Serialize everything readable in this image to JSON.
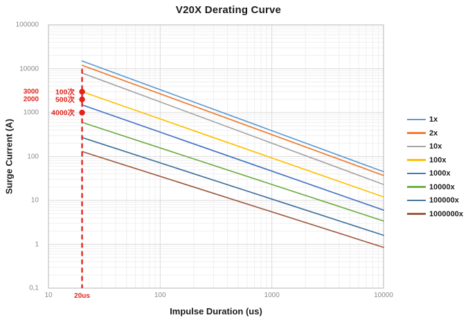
{
  "title": "V20X Derating Curve",
  "accent_red": "#E2231A",
  "chart_data": {
    "type": "line",
    "title": "V20X Derating Curve",
    "xlabel": "Impulse Duration (us)",
    "ylabel": "Surge Current (A)",
    "x_scale": "log",
    "y_scale": "log",
    "x_range": [
      10,
      10000
    ],
    "y_range": [
      0.1,
      100000
    ],
    "grid": true,
    "legend_position": "right",
    "x_ticks": [
      {
        "v": 10,
        "label": "10"
      },
      {
        "v": 100,
        "label": "100"
      },
      {
        "v": 1000,
        "label": "1000"
      },
      {
        "v": 10000,
        "label": "10000"
      }
    ],
    "y_ticks": [
      {
        "v": 100000,
        "label": "100000"
      },
      {
        "v": 10000,
        "label": "10000"
      },
      {
        "v": 1000,
        "label": "1000"
      },
      {
        "v": 100,
        "label": "100"
      },
      {
        "v": 10,
        "label": "10"
      },
      {
        "v": 1,
        "label": "1"
      },
      {
        "v": 0.1,
        "label": "0,1"
      }
    ],
    "series": [
      {
        "name": "1x",
        "color": "#5B9BD5",
        "points": [
          [
            20,
            15000
          ],
          [
            10000,
            45
          ]
        ]
      },
      {
        "name": "2x",
        "color": "#ED7D31",
        "points": [
          [
            20,
            12000
          ],
          [
            10000,
            37
          ]
        ]
      },
      {
        "name": "10x",
        "color": "#A5A5A5",
        "points": [
          [
            20,
            8000
          ],
          [
            10000,
            23
          ]
        ]
      },
      {
        "name": "100x",
        "color": "#FFC000",
        "points": [
          [
            20,
            3000
          ],
          [
            10000,
            12
          ]
        ]
      },
      {
        "name": "1000x",
        "color": "#4472C4",
        "points": [
          [
            20,
            1500
          ],
          [
            10000,
            6
          ]
        ]
      },
      {
        "name": "10000x",
        "color": "#70AD47",
        "points": [
          [
            20,
            600
          ],
          [
            10000,
            3.4
          ]
        ]
      },
      {
        "name": "100000x",
        "color": "#41719C",
        "points": [
          [
            20,
            270
          ],
          [
            10000,
            1.6
          ]
        ]
      },
      {
        "name": "1000000x",
        "color": "#9E5B41",
        "points": [
          [
            20,
            130
          ],
          [
            10000,
            0.85
          ]
        ]
      }
    ],
    "annotations": {
      "vline": {
        "x": 20,
        "label": "20us",
        "color": "#E2231A",
        "style": "dashed",
        "y_top": 10000,
        "y_bottom": 0.1
      },
      "points": [
        {
          "x": 20,
          "y": 3000,
          "label": "100次",
          "axis_label": "3000"
        },
        {
          "x": 20,
          "y": 2000,
          "label": "500次",
          "axis_label": "2000"
        },
        {
          "x": 20,
          "y": 1000,
          "label": "4000次",
          "axis_label": null
        }
      ]
    }
  }
}
